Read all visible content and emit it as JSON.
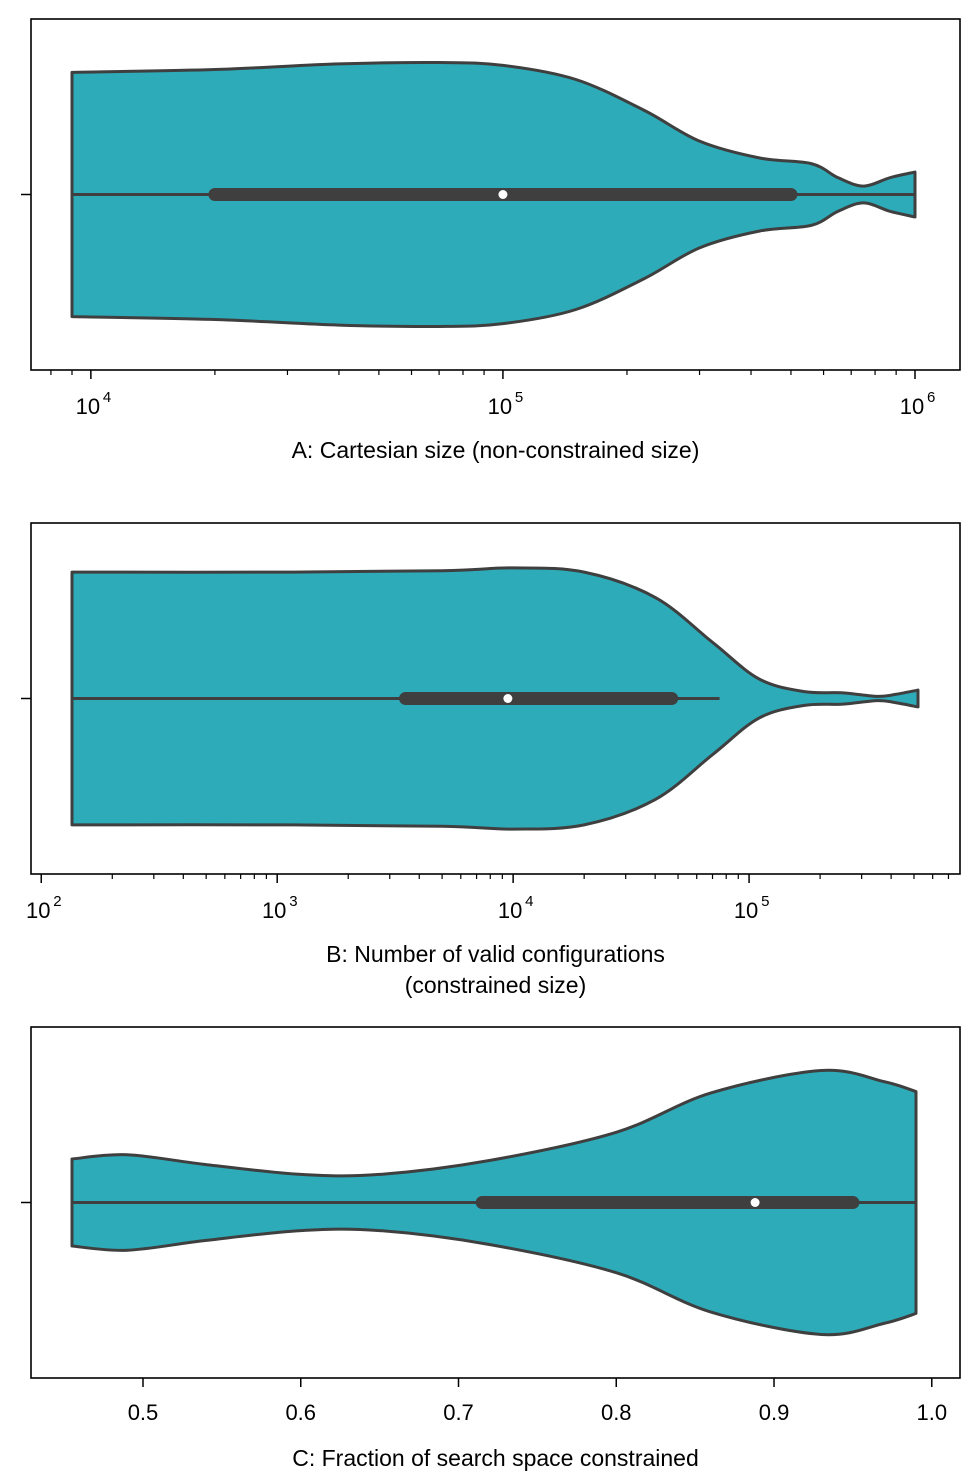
{
  "chart_data": [
    {
      "type": "violin",
      "xlabel": "A: Cartesian size (non-constrained size)",
      "xscale": "log",
      "xlim": [
        8000,
        1300000
      ],
      "major_ticks": [
        {
          "value": 10000,
          "base": "10",
          "exp": "4"
        },
        {
          "value": 100000,
          "base": "10",
          "exp": "5"
        },
        {
          "value": 1000000,
          "base": "10",
          "exp": "6"
        }
      ],
      "min": 9000,
      "max": 1000000,
      "q1": 20000,
      "median": 100000,
      "q3": 500000,
      "whisker_low": 9000,
      "whisker_high": 1000000,
      "density": [
        {
          "x": 9000,
          "w": 0.87
        },
        {
          "x": 20000,
          "w": 0.89
        },
        {
          "x": 40000,
          "w": 0.93
        },
        {
          "x": 70000,
          "w": 0.94
        },
        {
          "x": 100000,
          "w": 0.92
        },
        {
          "x": 150000,
          "w": 0.82
        },
        {
          "x": 220000,
          "w": 0.6
        },
        {
          "x": 300000,
          "w": 0.38
        },
        {
          "x": 420000,
          "w": 0.26
        },
        {
          "x": 560000,
          "w": 0.22
        },
        {
          "x": 650000,
          "w": 0.12
        },
        {
          "x": 750000,
          "w": 0.06
        },
        {
          "x": 870000,
          "w": 0.12
        },
        {
          "x": 1000000,
          "w": 0.16
        }
      ]
    },
    {
      "type": "violin",
      "xlabel": [
        "B: Number of valid configurations",
        "(constrained size)"
      ],
      "xscale": "log",
      "xlim": [
        90,
        900000
      ],
      "major_ticks": [
        {
          "value": 100,
          "base": "10",
          "exp": "2"
        },
        {
          "value": 1000,
          "base": "10",
          "exp": "3"
        },
        {
          "value": 10000,
          "base": "10",
          "exp": "4"
        },
        {
          "value": 100000,
          "base": "10",
          "exp": "5"
        }
      ],
      "min": 135,
      "max": 520000,
      "q1": 3500,
      "median": 9500,
      "q3": 47000,
      "whisker_low": 135,
      "whisker_high": 75000,
      "density": [
        {
          "x": 135,
          "w": 0.9
        },
        {
          "x": 1000,
          "w": 0.9
        },
        {
          "x": 5000,
          "w": 0.91
        },
        {
          "x": 10000,
          "w": 0.93
        },
        {
          "x": 20000,
          "w": 0.9
        },
        {
          "x": 40000,
          "w": 0.72
        },
        {
          "x": 70000,
          "w": 0.4
        },
        {
          "x": 110000,
          "w": 0.14
        },
        {
          "x": 170000,
          "w": 0.05
        },
        {
          "x": 250000,
          "w": 0.04
        },
        {
          "x": 350000,
          "w": 0.015
        },
        {
          "x": 420000,
          "w": 0.03
        },
        {
          "x": 520000,
          "w": 0.06
        }
      ]
    },
    {
      "type": "violin",
      "xlabel": "C: Fraction of search space constrained",
      "xscale": "linear",
      "xlim": [
        0.43,
        1.02
      ],
      "major_ticks": [
        {
          "value": 0.5,
          "text": "0.5"
        },
        {
          "value": 0.6,
          "text": "0.6"
        },
        {
          "value": 0.7,
          "text": "0.7"
        },
        {
          "value": 0.8,
          "text": "0.8"
        },
        {
          "value": 0.9,
          "text": "0.9"
        },
        {
          "value": 1.0,
          "text": "1.0"
        }
      ],
      "min": 0.455,
      "max": 0.99,
      "q1": 0.715,
      "median": 0.888,
      "q3": 0.95,
      "whisker_low": 0.455,
      "whisker_high": 0.99,
      "density": [
        {
          "x": 0.455,
          "w": 0.31
        },
        {
          "x": 0.49,
          "w": 0.34
        },
        {
          "x": 0.54,
          "w": 0.27
        },
        {
          "x": 0.6,
          "w": 0.2
        },
        {
          "x": 0.65,
          "w": 0.2
        },
        {
          "x": 0.72,
          "w": 0.3
        },
        {
          "x": 0.8,
          "w": 0.5
        },
        {
          "x": 0.86,
          "w": 0.78
        },
        {
          "x": 0.93,
          "w": 0.94
        },
        {
          "x": 0.97,
          "w": 0.86
        },
        {
          "x": 0.99,
          "w": 0.79
        }
      ]
    }
  ],
  "colors": {
    "violin_fill": "#2eabb9",
    "violin_edge": "#3f3f3f",
    "box": "#3f3f3f",
    "median_dot": "#ffffff",
    "frame": "#000000"
  }
}
